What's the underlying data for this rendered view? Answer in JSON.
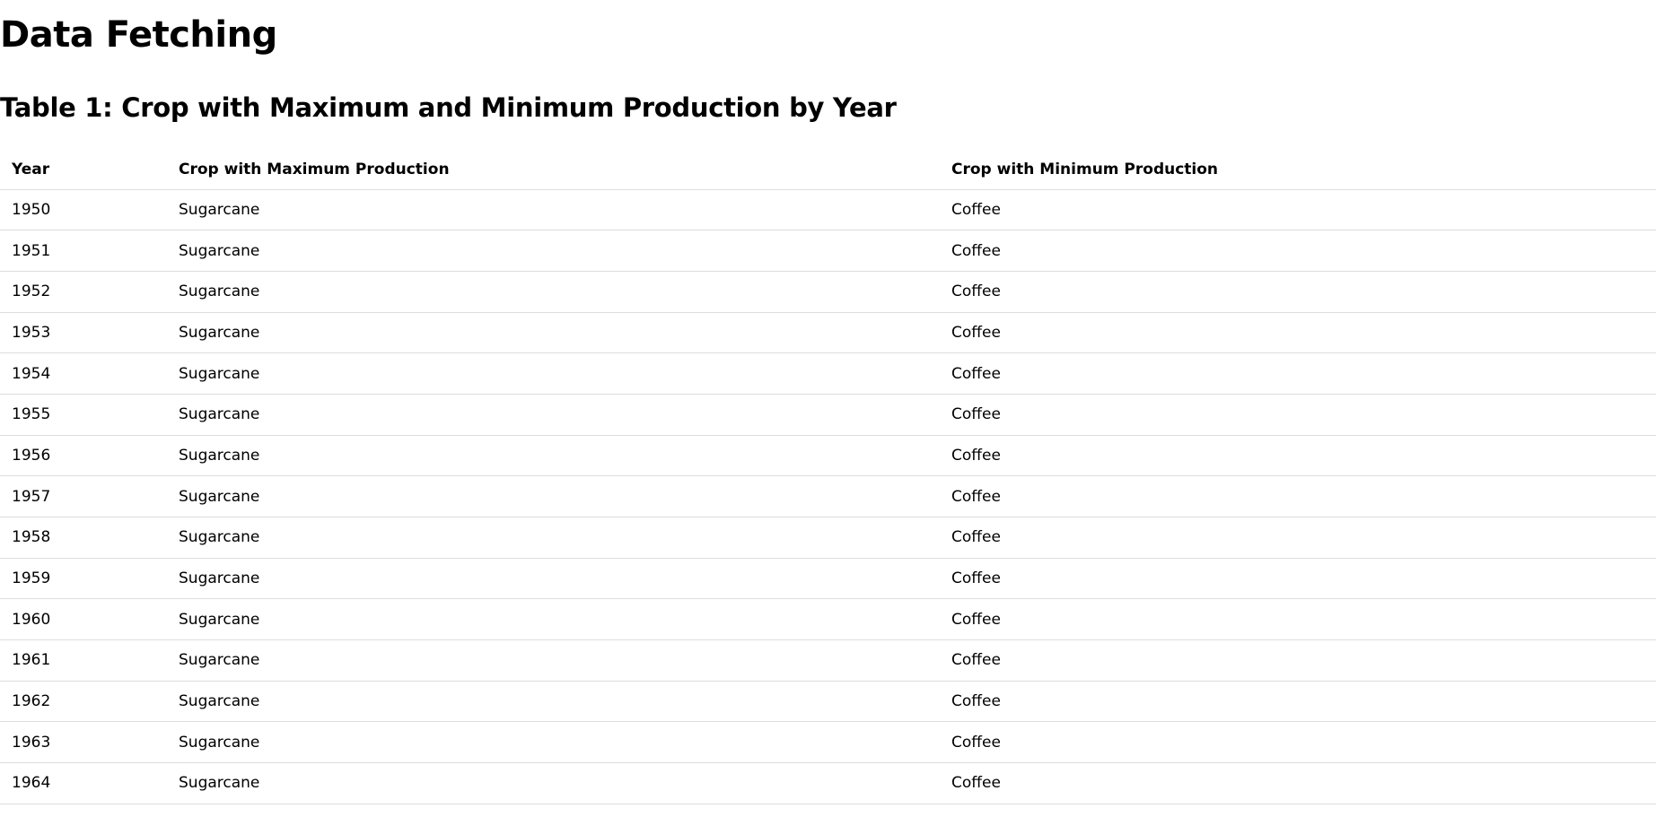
{
  "page": {
    "title": "Data Fetching",
    "table_title": "Table 1: Crop with Maximum and Minimum Production by Year"
  },
  "table": {
    "headers": [
      "Year",
      "Crop with Maximum Production",
      "Crop with Minimum Production"
    ],
    "rows": [
      [
        "1950",
        "Sugarcane",
        "Coffee"
      ],
      [
        "1951",
        "Sugarcane",
        "Coffee"
      ],
      [
        "1952",
        "Sugarcane",
        "Coffee"
      ],
      [
        "1953",
        "Sugarcane",
        "Coffee"
      ],
      [
        "1954",
        "Sugarcane",
        "Coffee"
      ],
      [
        "1955",
        "Sugarcane",
        "Coffee"
      ],
      [
        "1956",
        "Sugarcane",
        "Coffee"
      ],
      [
        "1957",
        "Sugarcane",
        "Coffee"
      ],
      [
        "1958",
        "Sugarcane",
        "Coffee"
      ],
      [
        "1959",
        "Sugarcane",
        "Coffee"
      ],
      [
        "1960",
        "Sugarcane",
        "Coffee"
      ],
      [
        "1961",
        "Sugarcane",
        "Coffee"
      ],
      [
        "1962",
        "Sugarcane",
        "Coffee"
      ],
      [
        "1963",
        "Sugarcane",
        "Coffee"
      ],
      [
        "1964",
        "Sugarcane",
        "Coffee"
      ]
    ]
  }
}
